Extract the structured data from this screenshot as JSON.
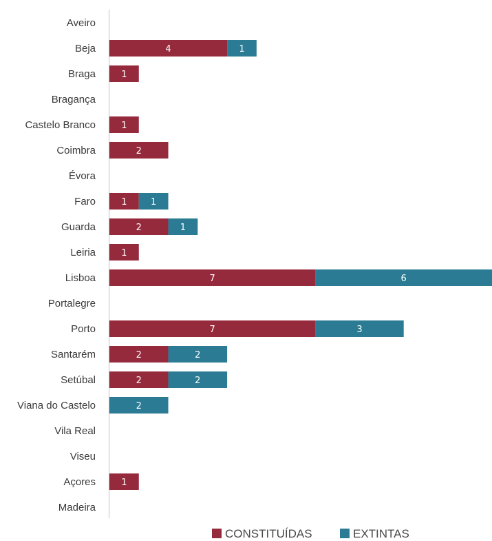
{
  "chart_data": {
    "type": "bar",
    "orientation": "horizontal",
    "stacked": true,
    "categories": [
      "Aveiro",
      "Beja",
      "Braga",
      "Bragança",
      "Castelo Branco",
      "Coimbra",
      "Évora",
      "Faro",
      "Guarda",
      "Leiria",
      "Lisboa",
      "Portalegre",
      "Porto",
      "Santarém",
      "Setúbal",
      "Viana do Castelo",
      "Vila Real",
      "Viseu",
      "Açores",
      "Madeira"
    ],
    "series": [
      {
        "name": "CONSTITUÍDAS",
        "color": "#962a3d",
        "values": [
          0,
          4,
          1,
          0,
          1,
          2,
          0,
          1,
          2,
          1,
          7,
          0,
          7,
          2,
          2,
          0,
          0,
          0,
          1,
          0
        ]
      },
      {
        "name": "EXTINTAS",
        "color": "#2a7b93",
        "values": [
          0,
          1,
          0,
          0,
          0,
          0,
          0,
          1,
          1,
          0,
          6,
          0,
          3,
          2,
          2,
          2,
          0,
          0,
          0,
          0
        ]
      }
    ],
    "xlim": [
      0,
      13
    ],
    "grid": false,
    "data_labels": true,
    "legend_position": "bottom-right",
    "axis_color": "#bfbfbf"
  }
}
